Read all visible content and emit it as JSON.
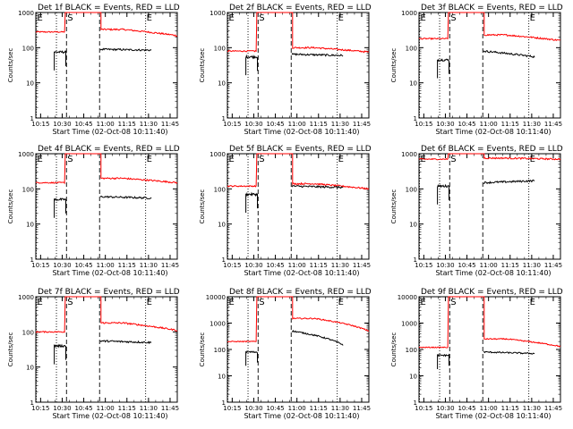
{
  "chart_data": {
    "type": "line",
    "layout": "3x3 grid",
    "y_scale": "log",
    "ylim": [
      1,
      1000
    ],
    "y_ticks": [
      "1",
      "10",
      "100",
      "1000"
    ],
    "ylabel": "Counts/sec",
    "xlabel": "Start Time (02-Oct-08 10:11:40)",
    "xlim": [
      "10:11:40",
      "11:50:00"
    ],
    "x_ticks": [
      "10:15",
      "10:30",
      "10:45",
      "11:00",
      "11:15",
      "11:30",
      "11:45"
    ],
    "markers": [
      {
        "label": "E",
        "time": "10:11:40",
        "style": "dotted"
      },
      {
        "label": "",
        "time": "10:26:00",
        "style": "dotted"
      },
      {
        "label": "S",
        "time": "10:33:00",
        "style": "dashed"
      },
      {
        "label": "",
        "time": "10:56:00",
        "style": "dashed"
      },
      {
        "label": "E",
        "time": "11:28:00",
        "style": "dotted"
      }
    ],
    "series_colors": {
      "events": "#000000",
      "lld": "#ff0000"
    },
    "panels": [
      {
        "title": "Det 1f BLACK = Events, RED = LLD",
        "y_top": "1000",
        "lld": {
          "pre": 280,
          "peak": 1000,
          "post": 330,
          "end": 220
        },
        "events": {
          "pre": 75,
          "post": 90,
          "end": 85
        }
      },
      {
        "title": "Det 2f BLACK = Events, RED = LLD",
        "y_top": "1000",
        "lld": {
          "pre": 80,
          "peak": 1000,
          "post": 100,
          "end": 75
        },
        "events": {
          "pre": 55,
          "post": 65,
          "end": 60
        }
      },
      {
        "title": "Det 3f BLACK = Events, RED = LLD",
        "y_top": "1000",
        "lld": {
          "pre": 180,
          "peak": 1000,
          "post": 230,
          "end": 160
        },
        "events": {
          "pre": 45,
          "post": 80,
          "end": 55
        }
      },
      {
        "title": "Det 4f BLACK = Events, RED = LLD",
        "y_top": "1000",
        "lld": {
          "pre": 150,
          "peak": 1000,
          "post": 200,
          "end": 150
        },
        "events": {
          "pre": 50,
          "post": 60,
          "end": 55
        }
      },
      {
        "title": "Det 5f BLACK = Events, RED = LLD",
        "y_top": "1000",
        "lld": {
          "pre": 120,
          "peak": 1000,
          "post": 140,
          "end": 100
        },
        "events": {
          "pre": 70,
          "post": 120,
          "end": 110
        }
      },
      {
        "title": "Det 6f BLACK = Events, RED = LLD",
        "y_top": "1000",
        "lld": {
          "pre": 700,
          "peak": 1000,
          "post": 750,
          "end": 700
        },
        "events": {
          "pre": 120,
          "post": 150,
          "end": 170
        }
      },
      {
        "title": "Det 7f BLACK = Events, RED = LLD",
        "y_top": "1000",
        "lld": {
          "pre": 100,
          "peak": 1000,
          "post": 180,
          "end": 110
        },
        "events": {
          "pre": 40,
          "post": 55,
          "end": 50
        }
      },
      {
        "title": "Det 8f BLACK = Events, RED = LLD",
        "y_top": "10000",
        "lld": {
          "pre": 200,
          "peak": 10000,
          "post": 1500,
          "end": 500
        },
        "events": {
          "pre": 80,
          "post": 500,
          "end": 150
        }
      },
      {
        "title": "Det 9f BLACK = Events, RED = LLD",
        "y_top": "10000",
        "lld": {
          "pre": 120,
          "peak": 10000,
          "post": 250,
          "end": 130
        },
        "events": {
          "pre": 60,
          "post": 80,
          "end": 70
        }
      }
    ]
  }
}
